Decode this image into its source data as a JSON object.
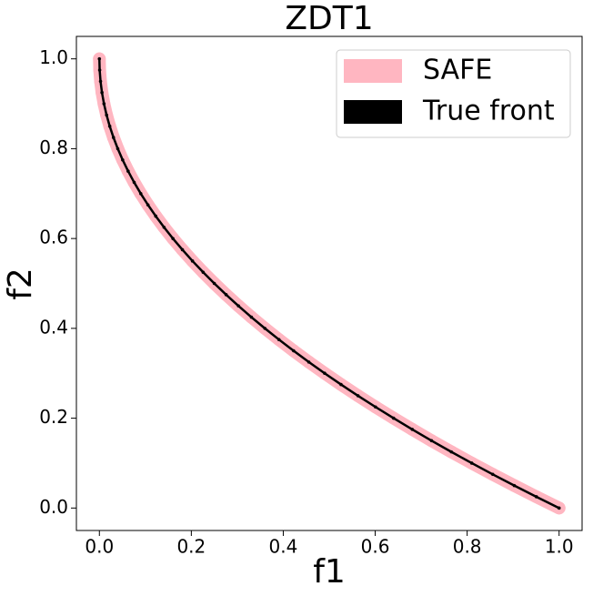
{
  "chart_data": {
    "type": "scatter",
    "title": "ZDT1",
    "x_label": "f1",
    "y_label": "f2",
    "x": [
      0,
      0.000625,
      0.0025,
      0.005625,
      0.01,
      0.015625,
      0.0225,
      0.030625,
      0.04,
      0.050625,
      0.0625,
      0.075625,
      0.09,
      0.105625,
      0.1225,
      0.140625,
      0.16,
      0.180625,
      0.2025,
      0.225625,
      0.25,
      0.275625,
      0.3025,
      0.330625,
      0.36,
      0.390625,
      0.4225,
      0.455625,
      0.49,
      0.525625,
      0.5625,
      0.600625,
      0.64,
      0.680625,
      0.7225,
      0.765625,
      0.81,
      0.855625,
      0.9025,
      0.950625,
      1
    ],
    "series": [
      {
        "name": "SAFE",
        "color": "#ffb6c1",
        "values": [
          1,
          0.975,
          0.95,
          0.925,
          0.9,
          0.875,
          0.85,
          0.825,
          0.8,
          0.775,
          0.75,
          0.725,
          0.7,
          0.675,
          0.65,
          0.625,
          0.6,
          0.575,
          0.55,
          0.525,
          0.5,
          0.475,
          0.45,
          0.425,
          0.4,
          0.375,
          0.35,
          0.325,
          0.3,
          0.275,
          0.25,
          0.225,
          0.2,
          0.175,
          0.15,
          0.125,
          0.1,
          0.075,
          0.05,
          0.025,
          0
        ]
      },
      {
        "name": "True front",
        "color": "#000000",
        "values": [
          1,
          0.975,
          0.95,
          0.925,
          0.9,
          0.875,
          0.85,
          0.825,
          0.8,
          0.775,
          0.75,
          0.725,
          0.7,
          0.675,
          0.65,
          0.625,
          0.6,
          0.575,
          0.55,
          0.525,
          0.5,
          0.475,
          0.45,
          0.425,
          0.4,
          0.375,
          0.35,
          0.325,
          0.3,
          0.275,
          0.25,
          0.225,
          0.2,
          0.175,
          0.15,
          0.125,
          0.1,
          0.075,
          0.05,
          0.025,
          0
        ]
      }
    ],
    "xlim": [
      -0.05,
      1.05
    ],
    "ylim": [
      -0.05,
      1.05
    ],
    "xticks": [
      {
        "value": 0,
        "label": "0.0"
      },
      {
        "value": 0.2,
        "label": "0.2"
      },
      {
        "value": 0.4,
        "label": "0.4"
      },
      {
        "value": 0.6,
        "label": "0.6"
      },
      {
        "value": 0.8,
        "label": "0.8"
      },
      {
        "value": 1,
        "label": "1.0"
      }
    ],
    "yticks": [
      {
        "value": 0,
        "label": "0.0"
      },
      {
        "value": 0.2,
        "label": "0.2"
      },
      {
        "value": 0.4,
        "label": "0.4"
      },
      {
        "value": 0.6,
        "label": "0.6"
      },
      {
        "value": 0.8,
        "label": "0.8"
      },
      {
        "value": 1,
        "label": "1.0"
      }
    ],
    "grid": false,
    "legend": "upper right"
  }
}
